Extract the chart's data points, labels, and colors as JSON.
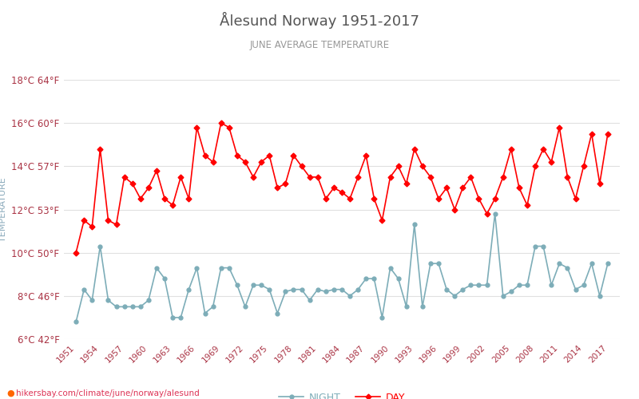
{
  "title": "Ålesund Norway 1951-2017",
  "subtitle": "JUNE AVERAGE TEMPERATURE",
  "ylabel": "TEMPERATURE",
  "watermark": "● hikersbay.com/climate/june/norway/alesund",
  "legend_night": "NIGHT",
  "legend_day": "DAY",
  "years": [
    1951,
    1952,
    1953,
    1954,
    1955,
    1956,
    1957,
    1958,
    1959,
    1960,
    1961,
    1962,
    1963,
    1964,
    1965,
    1966,
    1967,
    1968,
    1969,
    1970,
    1971,
    1972,
    1973,
    1974,
    1975,
    1976,
    1977,
    1978,
    1979,
    1980,
    1981,
    1982,
    1983,
    1984,
    1985,
    1986,
    1987,
    1988,
    1989,
    1990,
    1991,
    1992,
    1993,
    1994,
    1995,
    1996,
    1997,
    1998,
    1999,
    2000,
    2001,
    2002,
    2003,
    2004,
    2005,
    2006,
    2007,
    2008,
    2009,
    2010,
    2011,
    2012,
    2013,
    2014,
    2015,
    2016,
    2017
  ],
  "day": [
    10.0,
    11.5,
    11.2,
    14.8,
    11.5,
    11.3,
    13.5,
    13.2,
    12.5,
    13.0,
    13.8,
    12.5,
    12.2,
    13.5,
    12.5,
    15.8,
    14.5,
    14.2,
    16.0,
    15.8,
    14.5,
    14.2,
    13.5,
    14.2,
    14.5,
    13.0,
    13.2,
    14.5,
    14.0,
    13.5,
    13.5,
    12.5,
    13.0,
    12.8,
    12.5,
    13.5,
    14.5,
    12.5,
    11.5,
    13.5,
    14.0,
    13.2,
    14.8,
    14.0,
    13.5,
    12.5,
    13.0,
    12.0,
    13.0,
    13.5,
    12.5,
    11.8,
    12.5,
    13.5,
    14.8,
    13.0,
    12.2,
    14.0,
    14.8,
    14.2,
    15.8,
    13.5,
    12.5,
    14.0,
    15.5,
    13.2,
    15.5
  ],
  "night": [
    6.8,
    8.3,
    7.8,
    10.3,
    7.8,
    7.5,
    7.5,
    7.5,
    7.5,
    7.8,
    9.3,
    8.8,
    7.0,
    7.0,
    8.3,
    9.3,
    7.2,
    7.5,
    9.3,
    9.3,
    8.5,
    7.5,
    8.5,
    8.5,
    8.3,
    7.2,
    8.2,
    8.3,
    8.3,
    7.8,
    8.3,
    8.2,
    8.3,
    8.3,
    8.0,
    8.3,
    8.8,
    8.8,
    7.0,
    9.3,
    8.8,
    7.5,
    11.3,
    7.5,
    9.5,
    9.5,
    8.3,
    8.0,
    8.3,
    8.5,
    8.5,
    8.5,
    11.8,
    8.0,
    8.2,
    8.5,
    8.5,
    10.3,
    10.3,
    8.5,
    9.5,
    9.3,
    8.3,
    8.5,
    9.5,
    8.0,
    9.5
  ],
  "ylim_min": 6,
  "ylim_max": 18,
  "yticks_c": [
    6,
    8,
    10,
    12,
    14,
    16,
    18
  ],
  "yticks_f": [
    42,
    46,
    50,
    53,
    57,
    60,
    64
  ],
  "day_color": "#ff0000",
  "night_color": "#7dadb8",
  "title_color": "#555555",
  "subtitle_color": "#999999",
  "ylabel_color": "#8aaabb",
  "tick_color": "#aa3344",
  "grid_color": "#e0e0e0",
  "background_color": "#ffffff",
  "watermark_color": "#dd3355",
  "watermark_dot_color": "#ff6600"
}
